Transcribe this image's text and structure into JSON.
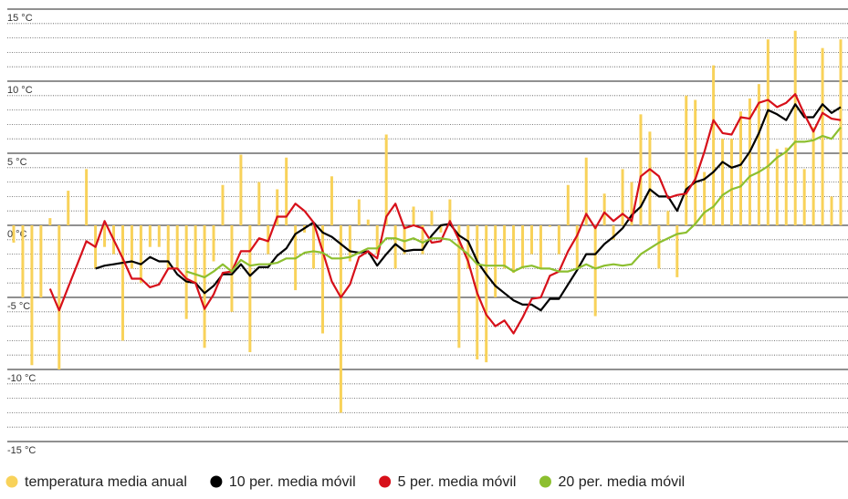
{
  "chart_data": {
    "type": "bar",
    "categories": [
      null,
      null,
      null,
      null,
      null,
      null,
      null,
      null,
      null,
      null,
      null,
      null,
      null,
      null,
      null,
      null,
      null,
      null,
      null,
      null,
      null,
      null,
      null,
      null,
      null,
      null,
      null,
      null,
      null,
      null,
      null,
      null,
      null,
      null,
      null,
      null,
      null,
      null,
      null,
      null,
      null,
      null,
      null,
      null,
      null,
      null,
      null,
      null,
      null,
      null,
      null,
      null,
      null,
      null,
      null,
      null,
      null,
      null,
      null,
      null,
      null,
      null,
      null,
      null,
      null,
      null,
      null,
      null,
      null,
      null,
      null,
      null,
      null,
      null,
      null,
      null,
      null,
      null,
      null,
      null,
      null,
      null,
      null,
      null,
      null,
      null,
      null,
      null,
      null,
      null,
      null,
      null
    ],
    "ylim": [
      -15,
      15
    ],
    "yticks": [
      {
        "value": 15,
        "label": "15 °C"
      },
      {
        "value": 10,
        "label": "10 °C"
      },
      {
        "value": 5,
        "label": "5 °C"
      },
      {
        "value": 0,
        "label": "0 °C"
      },
      {
        "value": -5,
        "label": "-5 °C"
      },
      {
        "value": -10,
        "label": "-10 °C"
      },
      {
        "value": -15,
        "label": "-15 °C"
      }
    ],
    "minor_yticks": [
      14,
      13,
      12,
      11,
      9,
      8,
      7,
      6,
      4,
      3,
      2,
      1,
      -1,
      -2,
      -3,
      -4,
      -6,
      -7,
      -8,
      -9,
      -11,
      -12,
      -13,
      -14
    ],
    "grid": true,
    "legend": "bottom",
    "series": [
      {
        "name": "temperatura media anual",
        "type": "bar",
        "color": "#f8d25a",
        "values": [
          -1.2,
          -5,
          -9.7,
          -5,
          0.5,
          -10,
          2.4,
          0,
          3.9,
          -3,
          -1.5,
          -2,
          -8,
          -3,
          -4,
          -1.5,
          -1.5,
          -3,
          -3,
          -6.5,
          -4,
          -8.5,
          -2.5,
          2.8,
          -6,
          4.9,
          -8.8,
          3,
          -2,
          2.5,
          4.7,
          -4.5,
          -0.5,
          -3,
          -7.5,
          3.4,
          -13,
          -2.5,
          1.8,
          0.4,
          -2,
          6.3,
          -3,
          -2,
          1.3,
          -2,
          1,
          -0.5,
          1.8,
          -8.5,
          -3,
          -9.3,
          -9.5,
          -5,
          -3,
          -3.3,
          -3,
          -2,
          -3,
          -0.1,
          -2,
          2.8,
          -3,
          4.7,
          -6.3,
          2.2,
          -1,
          3.9,
          3,
          7.7,
          6.5,
          -3,
          1,
          -3.6,
          9,
          8.7,
          3.7,
          11.1,
          6,
          6,
          7.9,
          8.8,
          9.8,
          12.9,
          5.3,
          5.4,
          13.5,
          3.9,
          6.8,
          12.3,
          2,
          12.9
        ]
      },
      {
        "name": "10 per. media móvil",
        "type": "line",
        "color": "#000000",
        "values": [
          null,
          null,
          null,
          null,
          null,
          null,
          null,
          null,
          null,
          -3.0,
          -2.8,
          -2.7,
          -2.6,
          -2.5,
          -2.7,
          -2.2,
          -2.5,
          -2.5,
          -3.4,
          -3.9,
          -4.0,
          -4.7,
          -4.2,
          -3.4,
          -3.4,
          -2.7,
          -3.5,
          -2.9,
          -2.9,
          -2.1,
          -1.6,
          -0.6,
          -0.2,
          0.2,
          -0.5,
          -0.8,
          -1.3,
          -1.8,
          -1.9,
          -1.8,
          -2.8,
          -2.0,
          -1.3,
          -1.8,
          -1.7,
          -1.7,
          -0.7,
          0,
          0.1,
          -0.7,
          -1.1,
          -2.5,
          -3.4,
          -4.2,
          -4.7,
          -5.2,
          -5.5,
          -5.5,
          -5.9,
          -5.1,
          -5.1,
          -4.1,
          -3.1,
          -2.0,
          -2.0,
          -1.3,
          -0.8,
          -0.2,
          0.7,
          1.3,
          2.5,
          2.0,
          2.0,
          1.0,
          2.5,
          3.0,
          3.2,
          3.7,
          4.4,
          4.0,
          4.2,
          5.1,
          6.4,
          8.0,
          7.7,
          7.3,
          8.4,
          7.5,
          7.5,
          8.4,
          7.8,
          8.2
        ]
      },
      {
        "name": "5 per. media móvil",
        "type": "line",
        "color": "#d7101a",
        "values": [
          null,
          null,
          null,
          null,
          -4.4,
          -5.9,
          -4.3,
          -2.7,
          -1.1,
          -1.5,
          0.3,
          -1.0,
          -2.3,
          -3.7,
          -3.7,
          -4.3,
          -4.1,
          -3.0,
          -3.0,
          -3.7,
          -4.0,
          -5.8,
          -4.8,
          -3.3,
          -3.2,
          -1.8,
          -1.8,
          -0.9,
          -1.1,
          0.6,
          0.6,
          1.5,
          1.0,
          0.2,
          -1.8,
          -3.9,
          -5.0,
          -4.1,
          -2.2,
          -1.8,
          -2.3,
          0.6,
          1.5,
          -0.2,
          0,
          -0.2,
          -1.2,
          -1.1,
          0.3,
          -1.0,
          -2.5,
          -4.7,
          -6.2,
          -7.0,
          -6.6,
          -7.5,
          -6.4,
          -5.1,
          -5.0,
          -3.5,
          -3.2,
          -1.8,
          -0.7,
          0.8,
          -0.2,
          0.9,
          0.3,
          0.8,
          0.3,
          3.4,
          3.9,
          3.4,
          1.9,
          2.1,
          2.2,
          3.2,
          5.1,
          7.3,
          6.4,
          6.3,
          7.5,
          7.4,
          8.5,
          8.7,
          8.2,
          8.5,
          9.1,
          7.7,
          6.5,
          7.8,
          7.4,
          7.3
        ]
      },
      {
        "name": "20 per. media móvil",
        "type": "line",
        "color": "#8cbf2f",
        "values": [
          null,
          null,
          null,
          null,
          null,
          null,
          null,
          null,
          null,
          null,
          null,
          null,
          null,
          null,
          null,
          null,
          null,
          null,
          null,
          -3.2,
          -3.4,
          -3.6,
          -3.2,
          -2.7,
          -3.2,
          -2.4,
          -2.8,
          -2.7,
          -2.7,
          -2.6,
          -2.3,
          -2.3,
          -1.9,
          -1.8,
          -1.9,
          -2.3,
          -2.3,
          -2.2,
          -1.9,
          -1.6,
          -1.6,
          -0.9,
          -0.9,
          -1.1,
          -0.9,
          -1.2,
          -0.9,
          -0.9,
          -1.0,
          -1.5,
          -2.0,
          -2.7,
          -2.8,
          -2.8,
          -2.8,
          -3.2,
          -2.9,
          -2.8,
          -3.0,
          -3.0,
          -3.2,
          -3.2,
          -3.0,
          -2.7,
          -3.0,
          -2.8,
          -2.7,
          -2.8,
          -2.7,
          -2.0,
          -1.6,
          -1.2,
          -0.9,
          -0.6,
          -0.5,
          0.1,
          0.9,
          1.3,
          2.1,
          2.5,
          2.7,
          3.4,
          3.7,
          4.1,
          4.7,
          5.1,
          5.8,
          5.8,
          5.9,
          6.2,
          6.0,
          6.8
        ]
      }
    ]
  }
}
